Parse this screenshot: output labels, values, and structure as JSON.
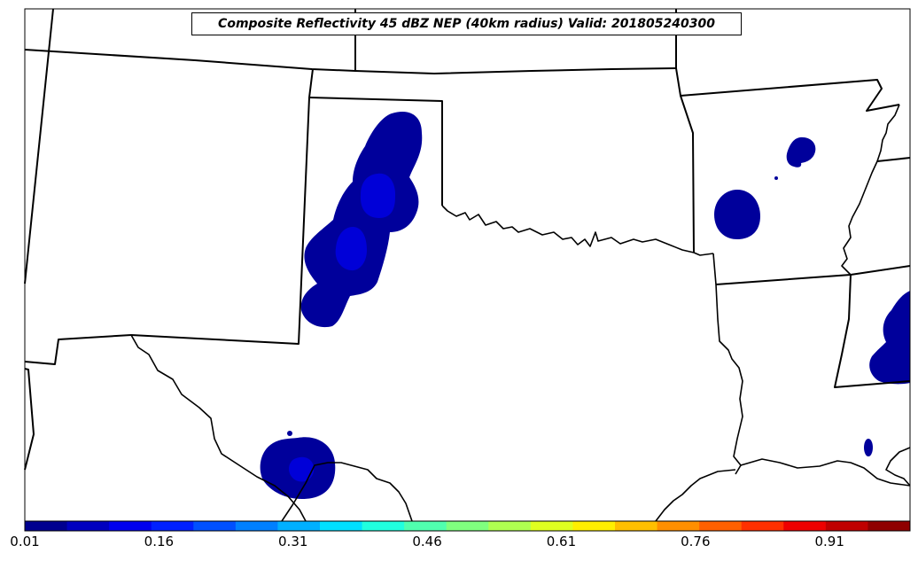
{
  "title": "Composite Reflectivity 45 dBZ NEP (40km radius) Valid: 201805240300",
  "colorbar": {
    "range": [
      0.01,
      1.0
    ],
    "tick_labels": [
      "0.01",
      "0.16",
      "0.31",
      "0.46",
      "0.61",
      "0.76",
      "0.91"
    ],
    "colors": [
      "#00008f",
      "#0000bf",
      "#0000ef",
      "#0020ff",
      "#0050ff",
      "#0080ff",
      "#00b0ff",
      "#00e0ff",
      "#20ffdf",
      "#50ffaf",
      "#80ff7f",
      "#afff50",
      "#dfff20",
      "#ffef00",
      "#ffbf00",
      "#ff8f00",
      "#ff6000",
      "#ff3000",
      "#ef0000",
      "#bf0000",
      "#8f0000"
    ]
  },
  "legend": {
    "probability_level_1_color": "#00009b",
    "probability_level_2_color": "#0000d8"
  }
}
